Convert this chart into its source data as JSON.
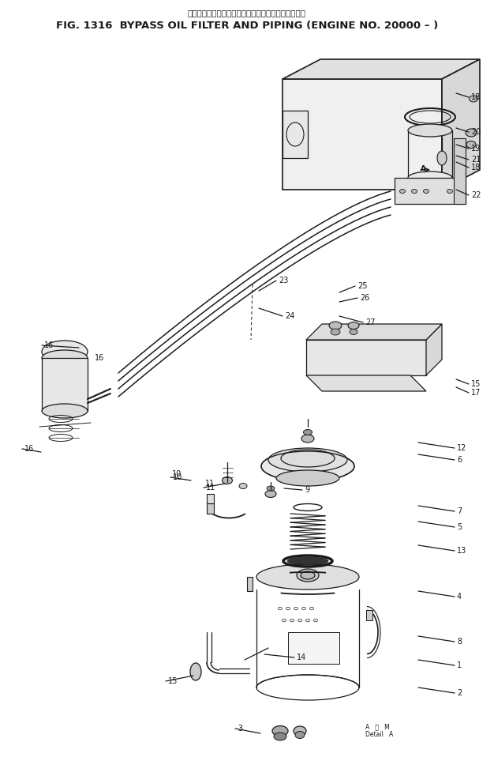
{
  "title_japanese": "バイパスオイルフィルタおよびパイピング　適用号機",
  "title_english": "FIG. 1316  BYPASS OIL FILTER AND PIPING (ENGINE NO. 20000 – )",
  "bg": "#ffffff",
  "lc": "#1a1a1a",
  "fig_width": 6.26,
  "fig_height": 9.82,
  "dpi": 100,
  "note_text": "A   披   M\nDetail   A"
}
